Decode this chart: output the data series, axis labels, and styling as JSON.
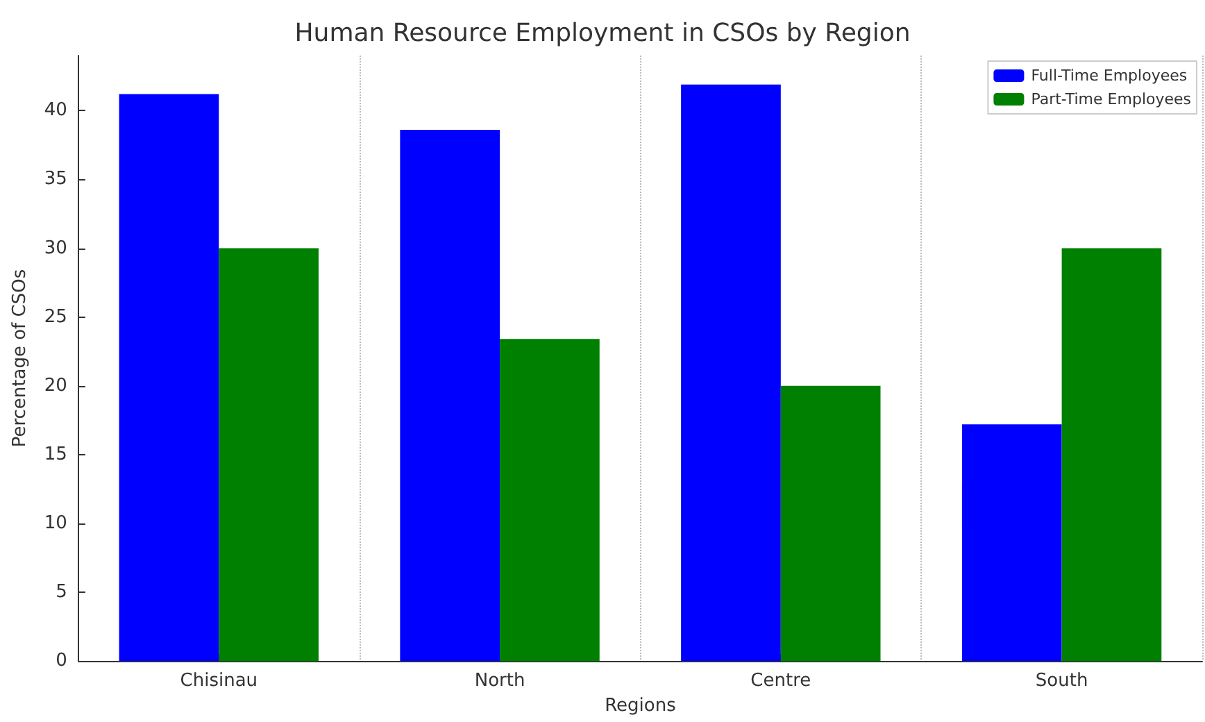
{
  "chart_data": {
    "type": "bar",
    "title": "Human Resource Employment in CSOs by Region",
    "xlabel": "Regions",
    "ylabel": "Percentage of CSOs",
    "categories": [
      "Chisinau",
      "North",
      "Centre",
      "South"
    ],
    "series": [
      {
        "name": "Full-Time Employees",
        "color": "#0000ff",
        "values": [
          41.2,
          38.6,
          41.9,
          17.2
        ]
      },
      {
        "name": "Part-Time Employees",
        "color": "#008000",
        "values": [
          30.0,
          23.4,
          20.0,
          30.0
        ]
      }
    ],
    "ylim": [
      0,
      44
    ],
    "yticks": [
      0,
      5,
      10,
      15,
      20,
      25,
      30,
      35,
      40
    ],
    "grid": "x",
    "legend": "top right"
  }
}
